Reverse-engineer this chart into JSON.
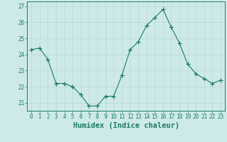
{
  "x": [
    0,
    1,
    2,
    3,
    4,
    5,
    6,
    7,
    8,
    9,
    10,
    11,
    12,
    13,
    14,
    15,
    16,
    17,
    18,
    19,
    20,
    21,
    22,
    23
  ],
  "y": [
    24.3,
    24.4,
    23.7,
    22.2,
    22.2,
    22.0,
    21.5,
    20.8,
    20.8,
    21.4,
    21.4,
    22.7,
    24.3,
    24.8,
    25.8,
    26.3,
    26.8,
    25.7,
    24.7,
    23.4,
    22.8,
    22.5,
    22.2,
    22.4
  ],
  "line_color": "#1a7a6a",
  "marker": "+",
  "marker_size": 4,
  "bg_color": "#ceeae8",
  "grid_color": "#b8d8d6",
  "xlabel": "Humidex (Indice chaleur)",
  "ylim": [
    20.5,
    27.3
  ],
  "yticks": [
    21,
    22,
    23,
    24,
    25,
    26,
    27
  ],
  "xticks": [
    0,
    1,
    2,
    3,
    4,
    5,
    6,
    7,
    8,
    9,
    10,
    11,
    12,
    13,
    14,
    15,
    16,
    17,
    18,
    19,
    20,
    21,
    22,
    23
  ],
  "tick_color": "#1a7a6a",
  "tick_fontsize": 5.5,
  "xlabel_fontsize": 7.5
}
